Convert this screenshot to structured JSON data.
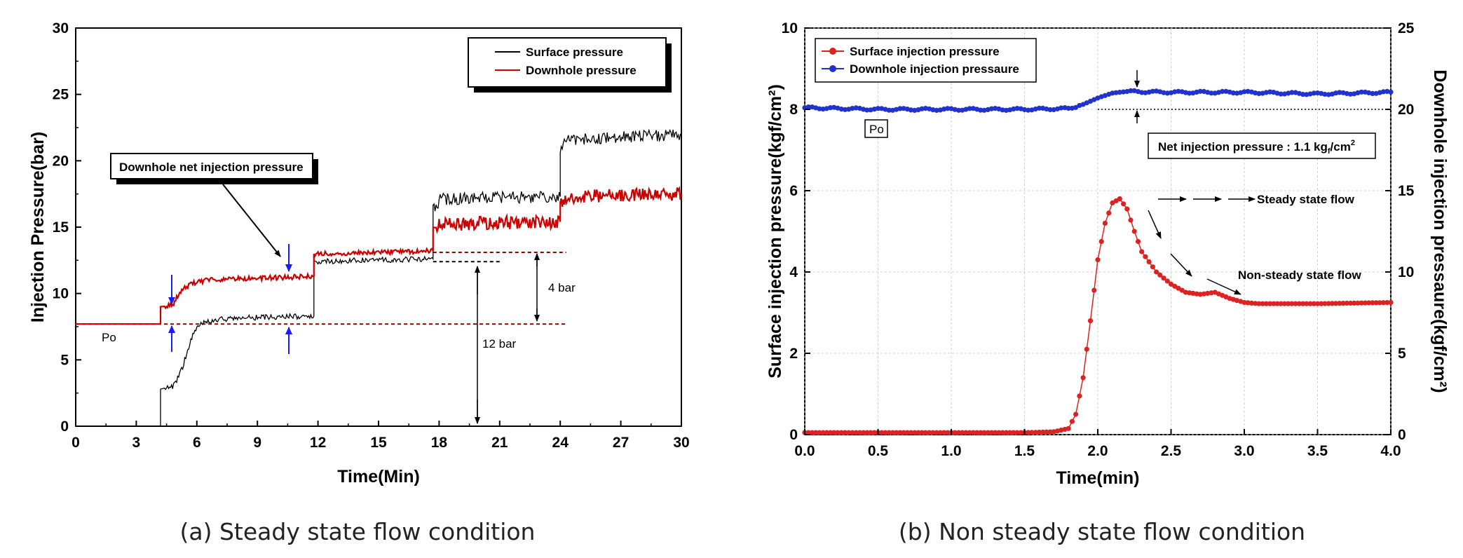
{
  "chart_data": [
    {
      "type": "line",
      "caption": "(a) Steady state flow condition",
      "xlabel": "Time(Min)",
      "ylabel": "Injection  Pressure(bar)",
      "xlim": [
        0,
        30
      ],
      "ylim": [
        0,
        30
      ],
      "xticks": [
        "0",
        "3",
        "6",
        "9",
        "12",
        "15",
        "18",
        "21",
        "24",
        "27",
        "30"
      ],
      "yticks": [
        "0",
        "5",
        "10",
        "15",
        "20",
        "25",
        "30"
      ],
      "legend_position": "top-right",
      "grid": false,
      "series": [
        {
          "name": "Surface pressure",
          "color": "#000000",
          "x": [
            0,
            4.2,
            4.2,
            4.8,
            5.0,
            5.3,
            5.6,
            5.9,
            6.0,
            6.5,
            7.5,
            9,
            11.8,
            11.8,
            12.1,
            14,
            17.7,
            17.7,
            18.1,
            20,
            24.0,
            24.0,
            24.3,
            27,
            30
          ],
          "y": [
            0,
            0,
            2.8,
            3.0,
            3.5,
            4.5,
            6.0,
            7.2,
            7.5,
            7.9,
            8.1,
            8.2,
            8.3,
            12.3,
            12.4,
            12.5,
            12.6,
            16.5,
            17.1,
            17.2,
            17.3,
            21.0,
            21.6,
            21.8,
            22.0
          ]
        },
        {
          "name": "Downhole pressure",
          "color": "#cc0000",
          "x": [
            0,
            4.2,
            4.2,
            4.8,
            5.2,
            5.8,
            6.5,
            8,
            10,
            11.8,
            11.8,
            12.2,
            15,
            17.7,
            17.7,
            18.1,
            20,
            24.0,
            24.0,
            24.3,
            27,
            30
          ],
          "y": [
            7.7,
            7.7,
            9.0,
            9.1,
            10.2,
            10.8,
            11.0,
            11.1,
            11.2,
            11.3,
            12.9,
            13.0,
            13.1,
            13.2,
            14.9,
            15.2,
            15.3,
            15.4,
            16.8,
            17.3,
            17.4,
            17.5
          ]
        }
      ],
      "reference_lines": [
        {
          "y": 7.7,
          "x": [
            0,
            24.3
          ],
          "color": "#8b0000"
        },
        {
          "y": 13.1,
          "x": [
            17.7,
            24.3
          ],
          "color": "#8b0000"
        },
        {
          "y": 12.4,
          "x": [
            17.7,
            21.1
          ],
          "color": "#000000"
        },
        {
          "y": 0,
          "x": [
            4.2,
            21.1
          ],
          "color": "#000000"
        }
      ],
      "annotations": {
        "callout": "Downhole net injection pressure",
        "po": "Po",
        "four_bar": "4 bar",
        "twelve_bar": "12 bar"
      }
    },
    {
      "type": "line",
      "caption": "(b) Non steady state flow condition",
      "xlabel": "Time(min)",
      "ylabel": "Surface injection pressure(kgf/cm²)",
      "y2label": "Downhole injection pressaure(kgf/cm²)",
      "xlim": [
        0,
        4.0
      ],
      "ylim": [
        0,
        10
      ],
      "y2lim": [
        0,
        25
      ],
      "xticks": [
        "0.0",
        "0.5",
        "1.0",
        "1.5",
        "2.0",
        "2.5",
        "3.0",
        "3.5",
        "4.0"
      ],
      "yticks": [
        "0",
        "2",
        "4",
        "6",
        "8",
        "10"
      ],
      "y2ticks": [
        "0",
        "5",
        "10",
        "15",
        "20",
        "25"
      ],
      "legend_position": "top-left",
      "grid": true,
      "series": [
        {
          "name": "Surface  injection  pressure",
          "color": "#dd2222",
          "axis": "left",
          "x": [
            0.0,
            0.5,
            1.0,
            1.5,
            1.7,
            1.8,
            1.85,
            1.9,
            1.95,
            2.0,
            2.05,
            2.1,
            2.15,
            2.2,
            2.25,
            2.3,
            2.4,
            2.5,
            2.6,
            2.7,
            2.8,
            2.9,
            3.0,
            3.1,
            3.5,
            4.0
          ],
          "y": [
            0.05,
            0.05,
            0.05,
            0.05,
            0.07,
            0.15,
            0.5,
            1.4,
            2.8,
            4.3,
            5.2,
            5.7,
            5.8,
            5.55,
            5.0,
            4.5,
            4.0,
            3.7,
            3.5,
            3.45,
            3.5,
            3.35,
            3.25,
            3.22,
            3.22,
            3.25
          ]
        },
        {
          "name": "Downhole  injection  pressaure",
          "color": "#2233cc",
          "axis": "right",
          "x": [
            0.0,
            0.5,
            1.0,
            1.5,
            1.8,
            1.9,
            2.0,
            2.1,
            2.2,
            2.5,
            3.0,
            3.5,
            4.0
          ],
          "y": [
            20.1,
            20.0,
            20.0,
            20.0,
            20.05,
            20.3,
            20.7,
            21.0,
            21.1,
            21.05,
            21.05,
            20.95,
            21.05
          ]
        }
      ],
      "reference_lines": [
        {
          "y2": 20.0,
          "x": [
            2.0,
            4.0
          ],
          "color": "#000000"
        }
      ],
      "annotations": {
        "po": "Po",
        "net_prefix": "Net  injection  pressure : 1.1 kg",
        "net_sub": "f",
        "net_mid": "/cm",
        "net_sup": "2",
        "steady": "Steady state flow",
        "nonsteady": "Non-steady state flow"
      }
    }
  ]
}
